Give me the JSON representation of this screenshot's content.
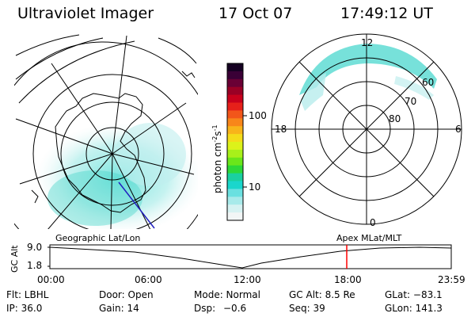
{
  "header": {
    "instrument": "Ultraviolet Imager",
    "date": "17 Oct 07",
    "time": "17:49:12 UT"
  },
  "left_panel": {
    "caption": "Geographic Lat/Lon"
  },
  "right_panel": {
    "caption": "Apex MLat/MLT",
    "mlt_labels": {
      "top": "12",
      "left": "18",
      "right": "6",
      "bottom": "0"
    },
    "lat_labels": [
      "60",
      "70",
      "80"
    ]
  },
  "colorbar": {
    "unit": "photon cm",
    "unit_exp1": "-2",
    "unit_s": "s",
    "unit_exp2": "-1",
    "ticks": [
      "100",
      "10"
    ],
    "colors": [
      "#150022",
      "#3a0036",
      "#6a0035",
      "#9a0025",
      "#c8001c",
      "#e6201a",
      "#f2561a",
      "#f8861a",
      "#f8b41a",
      "#f4dc1a",
      "#dcf21a",
      "#a8f01a",
      "#6ae61a",
      "#2cd838",
      "#1ad0a0",
      "#1ad6cc",
      "#6ae0e0",
      "#a8eaea",
      "#d6f2f2",
      "#f2f6f6"
    ]
  },
  "gc_plot": {
    "axis_label": "GC Alt",
    "y_max": "9.0",
    "y_min": "1.8",
    "x_ticks": [
      "00:00",
      "06:00",
      "12:00",
      "18:00",
      "23:59"
    ],
    "marker_color": "#ff0000"
  },
  "info": {
    "filter": "Flt: LBHL",
    "door": "Door: Open",
    "mode": "Mode: Normal",
    "gc_alt": "GC Alt: 8.5 Re",
    "glat": "GLat: −83.1",
    "ip": "IP: 36.0",
    "gain": "Gain: 14",
    "dsp_label": "Dsp:",
    "dsp_value": "−0.6",
    "seq": "Seq: 39",
    "glon": "GLon: 141.3"
  }
}
